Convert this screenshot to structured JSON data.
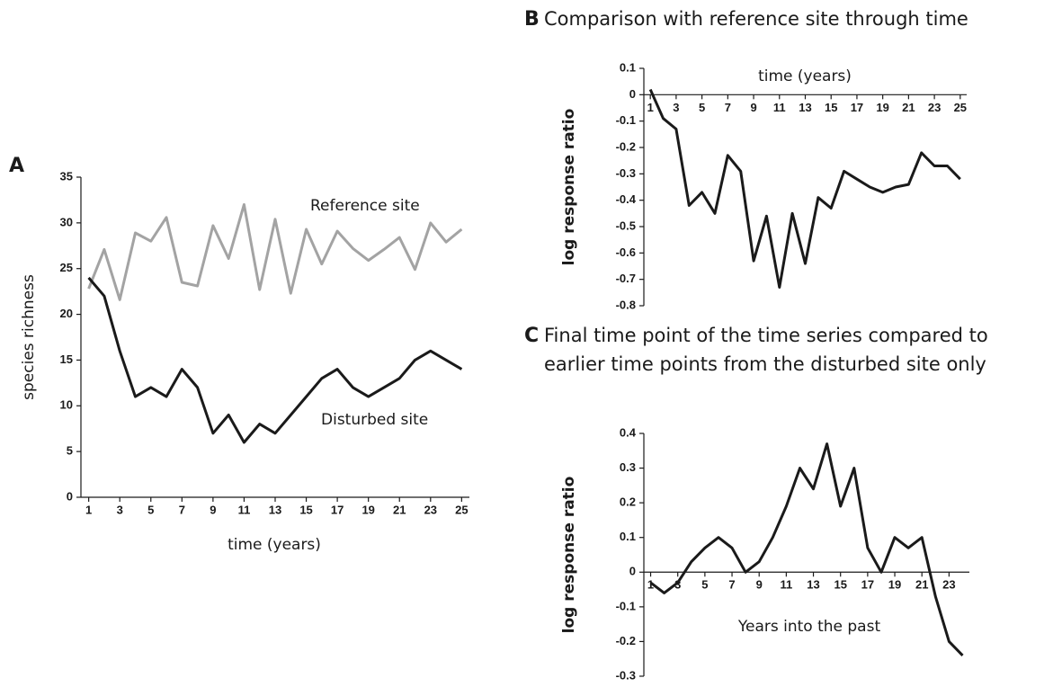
{
  "chart_data": [
    {
      "type": "line",
      "panel_label": "A",
      "ylabel": "species richness",
      "xlabel": "time (years)",
      "x": [
        1,
        2,
        3,
        4,
        5,
        6,
        7,
        8,
        9,
        10,
        11,
        12,
        13,
        14,
        15,
        16,
        17,
        18,
        19,
        20,
        21,
        22,
        23,
        24,
        25
      ],
      "xlim": [
        0.5,
        25.5
      ],
      "xticks": [
        1,
        3,
        5,
        7,
        9,
        11,
        13,
        15,
        17,
        19,
        21,
        23,
        25
      ],
      "ylim": [
        0,
        35
      ],
      "yticks": [
        0,
        5,
        10,
        15,
        20,
        25,
        30,
        35
      ],
      "series": [
        {
          "name": "Reference site",
          "color": "#a3a3a3",
          "values": [
            22.8,
            27.1,
            21.6,
            28.9,
            28,
            30.6,
            23.5,
            23.1,
            29.7,
            26.1,
            32,
            22.7,
            30.4,
            22.3,
            29.3,
            25.5,
            29.1,
            27.2,
            25.9,
            27.1,
            28.4,
            24.9,
            30,
            27.9,
            29.3
          ]
        },
        {
          "name": "Disturbed site",
          "color": "#1a1a1a",
          "values": [
            24,
            22,
            16,
            11,
            12,
            11,
            14,
            12,
            7,
            9,
            6,
            8,
            7,
            9,
            11,
            13,
            14,
            12,
            11,
            12,
            13,
            15,
            16,
            15,
            14
          ]
        }
      ]
    },
    {
      "type": "line",
      "panel_label": "B",
      "title": [
        "Comparison with reference site through time"
      ],
      "ylabel": "log response ratio",
      "xlabel": "time (years)",
      "x": [
        1,
        2,
        3,
        4,
        5,
        6,
        7,
        8,
        9,
        10,
        11,
        12,
        13,
        14,
        15,
        16,
        17,
        18,
        19,
        20,
        21,
        22,
        23,
        24,
        25
      ],
      "xlim": [
        0.5,
        25.5
      ],
      "xticks": [
        1,
        3,
        5,
        7,
        9,
        11,
        13,
        15,
        17,
        19,
        21,
        23,
        25
      ],
      "ylim": [
        -0.8,
        0.1
      ],
      "yticks": [
        -0.8,
        -0.7,
        -0.6,
        -0.5,
        -0.4,
        -0.3,
        -0.2,
        -0.1,
        0,
        0.1
      ],
      "series": [
        {
          "color": "#1a1a1a",
          "values": [
            0.02,
            -0.09,
            -0.13,
            -0.42,
            -0.37,
            -0.45,
            -0.23,
            -0.29,
            -0.63,
            -0.46,
            -0.73,
            -0.45,
            -0.64,
            -0.39,
            -0.43,
            -0.29,
            -0.32,
            -0.35,
            -0.37,
            -0.35,
            -0.34,
            -0.22,
            -0.27,
            -0.27,
            -0.32
          ]
        }
      ]
    },
    {
      "type": "line",
      "panel_label": "C",
      "title": [
        "Final time point of the time series compared to",
        "earlier time points from the disturbed site only"
      ],
      "ylabel": "log response ratio",
      "xlabel": "Years into the past",
      "x": [
        1,
        2,
        3,
        4,
        5,
        6,
        7,
        8,
        9,
        10,
        11,
        12,
        13,
        14,
        15,
        16,
        17,
        18,
        19,
        20,
        21,
        22,
        23,
        24
      ],
      "xlim": [
        0.5,
        24.5
      ],
      "xticks": [
        1,
        3,
        5,
        7,
        9,
        11,
        13,
        15,
        17,
        19,
        21,
        23
      ],
      "ylim": [
        -0.3,
        0.4
      ],
      "yticks": [
        -0.3,
        -0.2,
        -0.1,
        0,
        0.1,
        0.2,
        0.3,
        0.4
      ],
      "series": [
        {
          "color": "#1a1a1a",
          "values": [
            -0.03,
            -0.06,
            -0.03,
            0.03,
            0.07,
            0.1,
            0.07,
            0,
            0.03,
            0.1,
            0.19,
            0.3,
            0.24,
            0.37,
            0.19,
            0.3,
            0.07,
            0,
            0.1,
            0.07,
            0.1,
            -0.07,
            -0.2,
            -0.24
          ]
        }
      ]
    }
  ]
}
